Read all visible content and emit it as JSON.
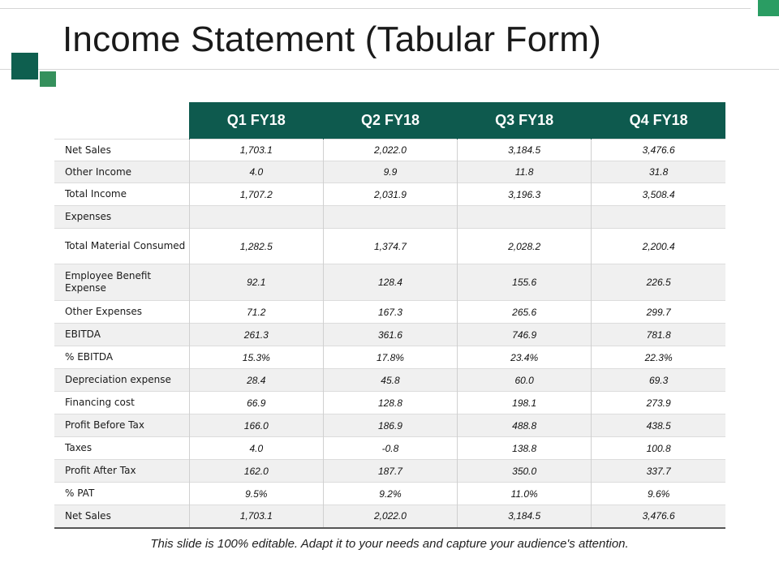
{
  "title": "Income Statement (Tabular Form)",
  "colors": {
    "header_bg": "#0e5a4e",
    "accent_dark": "#0e5f4f",
    "accent_light": "#35905c",
    "accent_corner": "#2a9d63",
    "row_alt": "#f0f0f0"
  },
  "table": {
    "headers": [
      "Q1 FY18",
      "Q2 FY18",
      "Q3 FY18",
      "Q4 FY18"
    ],
    "rows": [
      {
        "label": "Net Sales",
        "values": [
          "1,703.1",
          "2,022.0",
          "3,184.5",
          "3,476.6"
        ]
      },
      {
        "label": "Other Income",
        "values": [
          "4.0",
          "9.9",
          "11.8",
          "31.8"
        ]
      },
      {
        "label": "Total Income",
        "values": [
          "1,707.2",
          "2,031.9",
          "3,196.3",
          "3,508.4"
        ]
      },
      {
        "label": "Expenses",
        "values": [
          "",
          "",
          "",
          ""
        ]
      },
      {
        "label": "Total Material Consumed",
        "values": [
          "1,282.5",
          "1,374.7",
          "2,028.2",
          "2,200.4"
        ]
      },
      {
        "label": "Employee Benefit Expense",
        "values": [
          "92.1",
          "128.4",
          "155.6",
          "226.5"
        ]
      },
      {
        "label": "Other Expenses",
        "values": [
          "71.2",
          "167.3",
          "265.6",
          "299.7"
        ]
      },
      {
        "label": "EBITDA",
        "values": [
          "261.3",
          "361.6",
          "746.9",
          "781.8"
        ]
      },
      {
        "label": "% EBITDA",
        "values": [
          "15.3%",
          "17.8%",
          "23.4%",
          "22.3%"
        ]
      },
      {
        "label": "Depreciation expense",
        "values": [
          "28.4",
          "45.8",
          "60.0",
          "69.3"
        ]
      },
      {
        "label": "Financing cost",
        "values": [
          "66.9",
          "128.8",
          "198.1",
          "273.9"
        ]
      },
      {
        "label": "Profit Before Tax",
        "values": [
          "166.0",
          "186.9",
          "488.8",
          "438.5"
        ]
      },
      {
        "label": "Taxes",
        "values": [
          "4.0",
          "-0.8",
          "138.8",
          "100.8"
        ]
      },
      {
        "label": "Profit After Tax",
        "values": [
          "162.0",
          "187.7",
          "350.0",
          "337.7"
        ]
      },
      {
        "label": "% PAT",
        "values": [
          "9.5%",
          "9.2%",
          "11.0%",
          "9.6%"
        ]
      },
      {
        "label": "Net Sales",
        "values": [
          "1,703.1",
          "2,022.0",
          "3,184.5",
          "3,476.6"
        ]
      }
    ]
  },
  "footer": "This slide is 100% editable. Adapt it to your needs and capture your audience's attention."
}
